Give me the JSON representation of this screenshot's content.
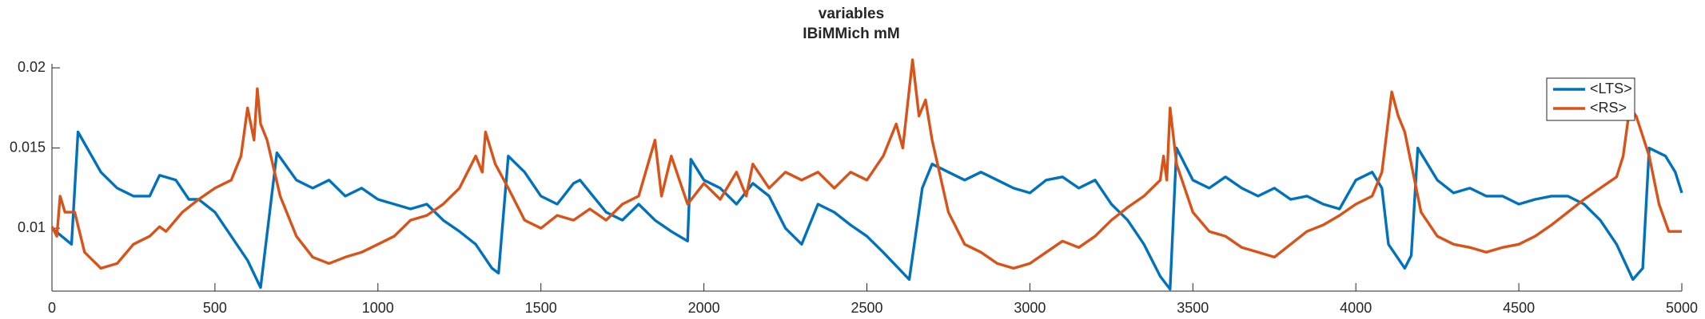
{
  "chart_data": {
    "type": "line",
    "title": "variables",
    "subtitle": "IBiMMich mM",
    "xlim": [
      0,
      5000
    ],
    "xticks": [
      0,
      500,
      1000,
      1500,
      2000,
      2500,
      3000,
      3500,
      4000,
      4500,
      5000
    ],
    "ylim": [
      0.00608,
      0.0205
    ],
    "yticks": [
      0.01,
      0.015,
      0.02
    ],
    "legend_position": "upper right",
    "series": [
      {
        "name": "<LTS>",
        "color": "#0072bd",
        "x": [
          0,
          30,
          60,
          80,
          150,
          200,
          250,
          300,
          330,
          380,
          420,
          450,
          500,
          550,
          600,
          640,
          690,
          750,
          800,
          850,
          900,
          950,
          1000,
          1050,
          1100,
          1150,
          1200,
          1250,
          1300,
          1350,
          1370,
          1400,
          1450,
          1500,
          1550,
          1600,
          1620,
          1700,
          1750,
          1800,
          1850,
          1900,
          1950,
          1960,
          2000,
          2050,
          2100,
          2150,
          2200,
          2250,
          2300,
          2350,
          2400,
          2450,
          2500,
          2550,
          2630,
          2670,
          2700,
          2750,
          2800,
          2850,
          2900,
          2950,
          3000,
          3050,
          3100,
          3150,
          3200,
          3250,
          3300,
          3350,
          3400,
          3430,
          3450,
          3500,
          3550,
          3600,
          3650,
          3700,
          3750,
          3800,
          3850,
          3900,
          3950,
          4000,
          4050,
          4080,
          4100,
          4150,
          4170,
          4190,
          4250,
          4300,
          4350,
          4400,
          4450,
          4500,
          4550,
          4600,
          4650,
          4700,
          4750,
          4800,
          4850,
          4880,
          4900,
          4950,
          4980,
          5000
        ],
        "values": [
          0.01,
          0.0095,
          0.009,
          0.016,
          0.0135,
          0.0125,
          0.012,
          0.012,
          0.0133,
          0.013,
          0.0118,
          0.0118,
          0.011,
          0.0095,
          0.008,
          0.0063,
          0.0147,
          0.013,
          0.0125,
          0.013,
          0.012,
          0.0125,
          0.0118,
          0.0115,
          0.0112,
          0.0115,
          0.0105,
          0.0098,
          0.009,
          0.0075,
          0.0072,
          0.0145,
          0.0135,
          0.012,
          0.0115,
          0.0128,
          0.013,
          0.011,
          0.0105,
          0.0115,
          0.0105,
          0.0098,
          0.0092,
          0.0143,
          0.013,
          0.0125,
          0.0115,
          0.0128,
          0.012,
          0.01,
          0.009,
          0.0115,
          0.011,
          0.0102,
          0.0095,
          0.0085,
          0.0068,
          0.0125,
          0.014,
          0.0135,
          0.013,
          0.0135,
          0.013,
          0.0125,
          0.0122,
          0.013,
          0.0132,
          0.0125,
          0.013,
          0.0115,
          0.0105,
          0.009,
          0.007,
          0.0062,
          0.015,
          0.013,
          0.0125,
          0.0132,
          0.0125,
          0.012,
          0.0125,
          0.0118,
          0.012,
          0.0115,
          0.0112,
          0.013,
          0.0135,
          0.0125,
          0.009,
          0.0075,
          0.0083,
          0.015,
          0.013,
          0.0122,
          0.0125,
          0.012,
          0.012,
          0.0115,
          0.0118,
          0.012,
          0.012,
          0.0115,
          0.0105,
          0.009,
          0.0068,
          0.0075,
          0.015,
          0.0145,
          0.0135,
          0.0122
        ]
      },
      {
        "name": "<RS>",
        "color": "#d95319",
        "x": [
          0,
          15,
          25,
          40,
          70,
          100,
          150,
          200,
          250,
          300,
          330,
          350,
          400,
          450,
          500,
          550,
          580,
          600,
          620,
          630,
          640,
          660,
          700,
          750,
          800,
          850,
          900,
          950,
          1000,
          1050,
          1100,
          1150,
          1200,
          1250,
          1300,
          1320,
          1330,
          1360,
          1400,
          1450,
          1500,
          1550,
          1600,
          1650,
          1700,
          1750,
          1800,
          1850,
          1870,
          1900,
          1950,
          2000,
          2050,
          2100,
          2130,
          2150,
          2200,
          2250,
          2300,
          2350,
          2400,
          2450,
          2500,
          2550,
          2590,
          2610,
          2640,
          2660,
          2680,
          2700,
          2750,
          2800,
          2850,
          2900,
          2950,
          3000,
          3050,
          3100,
          3150,
          3200,
          3250,
          3300,
          3350,
          3400,
          3410,
          3420,
          3430,
          3450,
          3500,
          3550,
          3600,
          3650,
          3700,
          3750,
          3800,
          3850,
          3900,
          3950,
          4000,
          4050,
          4080,
          4110,
          4130,
          4150,
          4200,
          4250,
          4300,
          4350,
          4400,
          4450,
          4500,
          4550,
          4600,
          4650,
          4700,
          4750,
          4800,
          4820,
          4840,
          4860,
          4900,
          4930,
          4960,
          5000
        ],
        "values": [
          0.0101,
          0.0095,
          0.012,
          0.011,
          0.011,
          0.0085,
          0.0075,
          0.0078,
          0.009,
          0.0095,
          0.0101,
          0.0098,
          0.011,
          0.0118,
          0.0125,
          0.013,
          0.0145,
          0.0175,
          0.0155,
          0.0187,
          0.0165,
          0.0155,
          0.012,
          0.0095,
          0.0082,
          0.0078,
          0.0082,
          0.0085,
          0.009,
          0.0095,
          0.0105,
          0.0108,
          0.0115,
          0.0125,
          0.0145,
          0.0135,
          0.016,
          0.014,
          0.0125,
          0.0105,
          0.01,
          0.0108,
          0.0105,
          0.0112,
          0.0105,
          0.0115,
          0.012,
          0.0155,
          0.012,
          0.0145,
          0.0115,
          0.0128,
          0.0118,
          0.0135,
          0.012,
          0.014,
          0.0125,
          0.0135,
          0.013,
          0.0135,
          0.0125,
          0.0135,
          0.013,
          0.0145,
          0.0165,
          0.015,
          0.0205,
          0.017,
          0.018,
          0.0155,
          0.011,
          0.009,
          0.0085,
          0.0078,
          0.0075,
          0.0078,
          0.0085,
          0.0092,
          0.0088,
          0.0095,
          0.0105,
          0.0113,
          0.012,
          0.013,
          0.0145,
          0.013,
          0.0175,
          0.014,
          0.011,
          0.0098,
          0.0095,
          0.0088,
          0.0085,
          0.0082,
          0.009,
          0.0098,
          0.0102,
          0.0108,
          0.0115,
          0.012,
          0.0135,
          0.0185,
          0.017,
          0.016,
          0.011,
          0.0095,
          0.009,
          0.0088,
          0.0085,
          0.0088,
          0.009,
          0.0095,
          0.0102,
          0.011,
          0.0118,
          0.0125,
          0.0132,
          0.0145,
          0.0175,
          0.017,
          0.0145,
          0.0115,
          0.0098,
          0.0098
        ]
      }
    ]
  }
}
